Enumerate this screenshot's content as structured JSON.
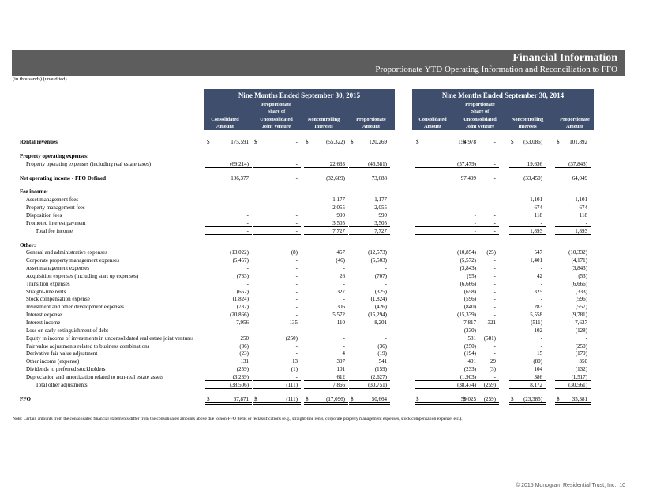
{
  "header": {
    "title": "Financial Information",
    "subtitle": "Proportionate YTD Operating Information and Reconciliation to FFO",
    "units": "(in thousands) (unaudited)"
  },
  "table": {
    "currency_symbol": "$",
    "groups": [
      {
        "title": "Nine Months Ended September 30, 2015",
        "columns": [
          [
            "Consolidated",
            "Amount"
          ],
          [
            "Proportionate",
            "Share of",
            "Unconsolidated",
            "Joint Venture"
          ],
          [
            "Noncontrolling",
            "Interests"
          ],
          [
            "Proportionate",
            "Amount"
          ]
        ]
      },
      {
        "title": "Nine Months Ended September 30, 2014",
        "columns": [
          [
            "Consolidated",
            "Amount"
          ],
          [
            "Proportionate",
            "Share of",
            "Unconsolidated",
            "Joint Venture"
          ],
          [
            "Noncontrolling",
            "Interests"
          ],
          [
            "Proportionate",
            "Amount"
          ]
        ]
      }
    ],
    "rows": [
      {
        "label": "Rental revenues",
        "bold": true,
        "dollar": true,
        "values": [
          "175,591",
          "-",
          "(55,322)",
          "120,269",
          "154,978",
          "-",
          "(53,086)",
          "101,892"
        ]
      },
      {
        "label": "Property operating expenses:",
        "bold": true
      },
      {
        "label": "Property operating expenses (including real estate taxes)",
        "indent": 1,
        "rule": "single",
        "values": [
          "(69,214)",
          "-",
          "22,633",
          "(46,581)",
          "(57,479)",
          "-",
          "19,636",
          "(37,843)"
        ]
      },
      {
        "label": "Net operating income - FFO Defined",
        "bold": true,
        "values": [
          "106,377",
          "-",
          "(32,689)",
          "73,688",
          "97,499",
          "-",
          "(33,450)",
          "64,049"
        ]
      },
      {
        "label": "Fee income:",
        "bold": true
      },
      {
        "label": "Asset management fees",
        "indent": 1,
        "values": [
          "-",
          "-",
          "1,177",
          "1,177",
          "-",
          "-",
          "1,101",
          "1,101"
        ]
      },
      {
        "label": "Property management fees",
        "indent": 1,
        "values": [
          "-",
          "-",
          "2,055",
          "2,055",
          "-",
          "-",
          "674",
          "674"
        ]
      },
      {
        "label": "Disposition fees",
        "indent": 1,
        "values": [
          "-",
          "-",
          "990",
          "990",
          "-",
          "-",
          "118",
          "118"
        ]
      },
      {
        "label": "Promoted interest payment",
        "indent": 1,
        "rule": "single",
        "values": [
          "-",
          "-",
          "3,505",
          "3,505",
          "-",
          "-",
          "-",
          "-"
        ]
      },
      {
        "label": "Total fee income",
        "indent": 2,
        "rule": "single",
        "values": [
          "-",
          "-",
          "7,727",
          "7,727",
          "-",
          "-",
          "1,893",
          "1,893"
        ]
      },
      {
        "label": "Other:",
        "bold": true
      },
      {
        "label": "General and administrative expenses",
        "indent": 1,
        "values": [
          "(13,022)",
          "(8)",
          "457",
          "(12,573)",
          "(10,854)",
          "(25)",
          "547",
          "(10,332)"
        ]
      },
      {
        "label": "Corporate property management expenses",
        "indent": 1,
        "values": [
          "(5,457)",
          "-",
          "(46)",
          "(5,503)",
          "(5,572)",
          "-",
          "1,401",
          "(4,171)"
        ]
      },
      {
        "label": "Asset management expenses",
        "indent": 1,
        "values": [
          "-",
          "-",
          "-",
          "-",
          "(3,843)",
          "-",
          "-",
          "(3,843)"
        ]
      },
      {
        "label": "Acquisition expenses (including start up expenses)",
        "indent": 1,
        "values": [
          "(733)",
          "-",
          "26",
          "(707)",
          "(95)",
          "-",
          "42",
          "(53)"
        ]
      },
      {
        "label": "Transition expenses",
        "indent": 1,
        "values": [
          "-",
          "-",
          "-",
          "-",
          "(6,666)",
          "-",
          "-",
          "(6,666)"
        ]
      },
      {
        "label": "Straight-line rents",
        "indent": 1,
        "values": [
          "(652)",
          "-",
          "327",
          "(325)",
          "(658)",
          "-",
          "325",
          "(333)"
        ]
      },
      {
        "label": "Stock compensation expense",
        "indent": 1,
        "values": [
          "(1,824)",
          "-",
          "-",
          "(1,824)",
          "(596)",
          "-",
          "-",
          "(596)"
        ]
      },
      {
        "label": "Investment and other development expenses",
        "indent": 1,
        "values": [
          "(732)",
          "-",
          "306",
          "(426)",
          "(840)",
          "-",
          "283",
          "(557)"
        ]
      },
      {
        "label": "Interest expense",
        "indent": 1,
        "values": [
          "(20,866)",
          "-",
          "5,572",
          "(15,294)",
          "(15,339)",
          "-",
          "5,558",
          "(9,781)"
        ]
      },
      {
        "label": "Interest income",
        "indent": 1,
        "values": [
          "7,956",
          "135",
          "110",
          "8,201",
          "7,817",
          "321",
          "(511)",
          "7,627"
        ]
      },
      {
        "label": "Loss on early extinguishment of debt",
        "indent": 1,
        "values": [
          "-",
          "-",
          "-",
          "-",
          "(230)",
          "-",
          "102",
          "(128)"
        ]
      },
      {
        "label": "Equity in income of investments in unconsolidated real estate joint ventures",
        "indent": 1,
        "values": [
          "250",
          "(250)",
          "-",
          "-",
          "581",
          "(581)",
          "-",
          "-"
        ]
      },
      {
        "label": "Fair value adjustments related to business combinations",
        "indent": 1,
        "values": [
          "(36)",
          "-",
          "-",
          "(36)",
          "(250)",
          "-",
          "-",
          "(250)"
        ]
      },
      {
        "label": "Derivative fair value adjustment",
        "indent": 1,
        "values": [
          "(23)",
          "-",
          "4",
          "(19)",
          "(194)",
          "-",
          "15",
          "(179)"
        ]
      },
      {
        "label": "Other income (expense)",
        "indent": 1,
        "values": [
          "131",
          "13",
          "397",
          "541",
          "401",
          "29",
          "(80)",
          "350"
        ]
      },
      {
        "label": "Dividends to preferred stockholders",
        "indent": 1,
        "values": [
          "(259)",
          "(1)",
          "101",
          "(159)",
          "(233)",
          "(3)",
          "104",
          "(132)"
        ]
      },
      {
        "label": "Depreciation and amortization related to non-real estate assets",
        "indent": 1,
        "rule": "single",
        "values": [
          "(3,239)",
          "-",
          "612",
          "(2,627)",
          "(1,903)",
          "-",
          "386",
          "(1,517)"
        ]
      },
      {
        "label": "Total other adjustments",
        "indent": 2,
        "rule": "single",
        "values": [
          "(38,506)",
          "(111)",
          "7,866",
          "(30,751)",
          "(38,474)",
          "(259)",
          "8,172",
          "(30,561)"
        ]
      },
      {
        "label": "FFO",
        "bold": true,
        "dollar": true,
        "rule": "double",
        "values": [
          "67,871",
          "(111)",
          "(17,096)",
          "50,664",
          "59,025",
          "(259)",
          "(23,385)",
          "35,381"
        ]
      }
    ]
  },
  "note": "Note: Certain amounts from the consolidated financial statements differ from the consolidated amounts above due to non-FFO items or reclassifications (e.g., straight-line rents, corporate property management expenses, stock compensation expense, etc.).",
  "footer": {
    "copyright": "© 2015 Monogram Residential Trust, Inc.",
    "page": "10"
  }
}
